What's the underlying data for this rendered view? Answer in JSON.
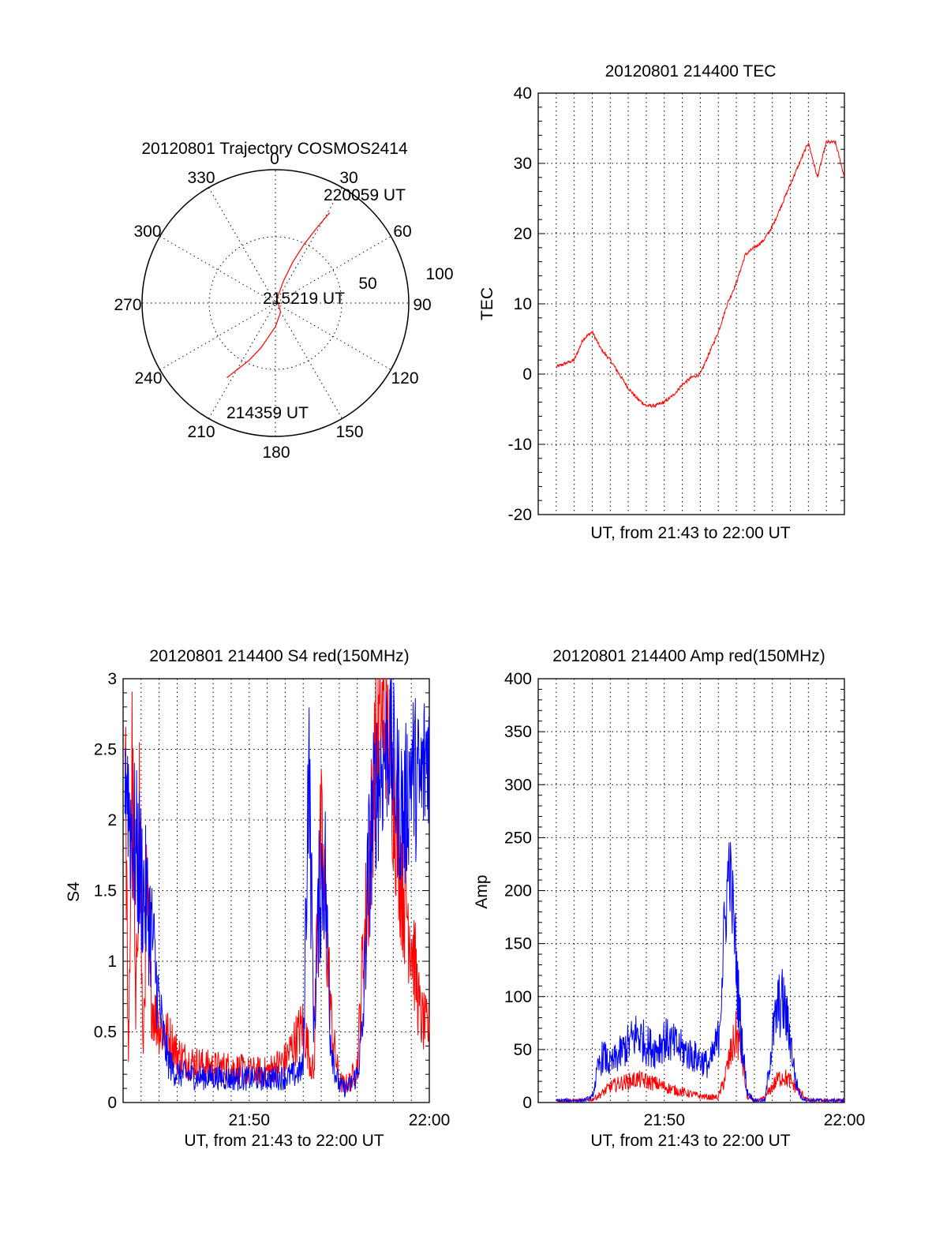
{
  "chart_data": [
    {
      "type": "polar",
      "title": "20120801 Trajectory COSMOS2414",
      "azimuth_labels": [
        "0",
        "30",
        "60",
        "90",
        "120",
        "150",
        "180",
        "210",
        "240",
        "270",
        "300",
        "330"
      ],
      "radial_labels": [
        "50",
        "100"
      ],
      "trajectory": {
        "color": "#ff0000",
        "points": [
          {
            "az": 213,
            "el": 30
          },
          {
            "az": 210,
            "el": 38
          },
          {
            "az": 205,
            "el": 47
          },
          {
            "az": 198,
            "el": 58
          },
          {
            "az": 180,
            "el": 74
          },
          {
            "az": 150,
            "el": 83
          },
          {
            "az": 20,
            "el": 87
          },
          {
            "az": 20,
            "el": 74
          },
          {
            "az": 23,
            "el": 60
          },
          {
            "az": 26,
            "el": 46
          },
          {
            "az": 29,
            "el": 31
          },
          {
            "az": 31,
            "el": 19
          }
        ]
      },
      "annotations": [
        "220059 UT",
        "215219 UT",
        "214359 UT"
      ]
    },
    {
      "type": "line",
      "title": "20120801 214400 TEC",
      "xlabel": "UT, from 21:43 to 22:00 UT",
      "ylabel": "TEC",
      "xlim": [
        0,
        17
      ],
      "ylim": [
        -20,
        40
      ],
      "y_ticks": [
        "40",
        "30",
        "20",
        "10",
        "0",
        "-10",
        "-20"
      ],
      "x_ticks": [],
      "grid": true,
      "series": [
        {
          "color": "#ff0000",
          "x": [
            1.0,
            1.5,
            2.0,
            2.5,
            3.0,
            3.5,
            4.0,
            4.5,
            5.0,
            5.5,
            6.0,
            6.5,
            7.0,
            7.5,
            8.0,
            8.5,
            9.0,
            9.5,
            10.0,
            10.5,
            11.0,
            11.5,
            12.0,
            12.5,
            13.0,
            13.5,
            14.0,
            14.5,
            15.0,
            15.5,
            16.0,
            16.5,
            16.8,
            17.0
          ],
          "y": [
            1,
            1.5,
            2,
            5,
            6,
            3.5,
            2,
            0,
            -2,
            -3.5,
            -4.5,
            -4.5,
            -4,
            -3,
            -1.5,
            -0.5,
            0,
            3,
            6,
            10,
            13,
            17,
            18,
            19,
            21,
            24,
            27,
            30,
            33,
            28,
            33,
            33,
            30,
            28
          ]
        }
      ]
    },
    {
      "type": "line",
      "title": "20120801 214400 S4 red(150MHz)",
      "xlabel": "UT, from 21:43 to 22:00 UT",
      "ylabel": "S4",
      "xlim": [
        0,
        17
      ],
      "ylim": [
        0,
        3
      ],
      "y_ticks": [
        "3",
        "2.5",
        "2",
        "1.5",
        "1",
        "0.5",
        "0"
      ],
      "x_ticks": [
        "21:50",
        "22:00"
      ],
      "grid": true,
      "series": [
        {
          "color": "#ff0000",
          "x": [
            0.1,
            0.3,
            0.5,
            0.7,
            0.9,
            1.1,
            1.3,
            1.5,
            1.8,
            2.2,
            2.6,
            3.0,
            3.5,
            4.0,
            5.0,
            6.0,
            7.0,
            8.0,
            9.0,
            9.6,
            10.0,
            10.4,
            10.6,
            10.8,
            11.0,
            11.3,
            11.6,
            12.0,
            12.3,
            12.6,
            13.0,
            13.3,
            13.6,
            14.0,
            14.5,
            15.0,
            15.5,
            16.0,
            16.5,
            17.0
          ],
          "y": [
            2.8,
            0.2,
            2.5,
            0.5,
            2.2,
            0.3,
            1.5,
            0.8,
            0.6,
            0.5,
            0.45,
            0.35,
            0.3,
            0.28,
            0.25,
            0.25,
            0.22,
            0.22,
            0.3,
            0.45,
            0.55,
            0.3,
            0.2,
            1.5,
            1.8,
            1.2,
            0.5,
            0.15,
            0.12,
            0.15,
            0.25,
            1.0,
            1.5,
            2.5,
            2.8,
            2.2,
            1.6,
            1.2,
            0.6,
            0.5
          ]
        },
        {
          "color": "#0000ff",
          "x": [
            0.1,
            0.4,
            0.7,
            1.0,
            1.3,
            1.6,
            1.9,
            2.2,
            2.5,
            2.8,
            3.2,
            3.6,
            4.0,
            5.0,
            6.0,
            7.0,
            8.0,
            9.0,
            9.6,
            10.0,
            10.3,
            10.6,
            10.9,
            11.2,
            11.5,
            11.8,
            12.0,
            12.3,
            12.6,
            13.0,
            13.3,
            13.6,
            14.0,
            14.4,
            14.8,
            15.2,
            15.6,
            16.0,
            16.5,
            17.0
          ],
          "y": [
            2.5,
            2.0,
            1.8,
            1.6,
            1.4,
            1.2,
            0.8,
            0.5,
            0.3,
            0.22,
            0.2,
            0.2,
            0.18,
            0.18,
            0.17,
            0.17,
            0.17,
            0.18,
            0.2,
            0.25,
            2.5,
            0.5,
            1.5,
            1.7,
            0.5,
            0.2,
            0.12,
            0.1,
            0.12,
            0.2,
            0.5,
            1.6,
            2.2,
            2.4,
            2.6,
            2.2,
            2.0,
            2.4,
            2.2,
            2.6
          ]
        }
      ]
    },
    {
      "type": "line",
      "title": "20120801 214400 Amp red(150MHz)",
      "xlabel": "UT, from 21:43 to 22:00 UT",
      "ylabel": "Amp",
      "xlim": [
        0,
        17
      ],
      "ylim": [
        0,
        400
      ],
      "y_ticks": [
        "400",
        "350",
        "300",
        "250",
        "200",
        "150",
        "100",
        "50",
        "0"
      ],
      "x_ticks": [
        "21:50",
        "22:00"
      ],
      "grid": true,
      "series": [
        {
          "color": "#ff0000",
          "x": [
            1.0,
            2.0,
            2.5,
            3.0,
            3.5,
            4.0,
            4.5,
            5.0,
            5.5,
            6.0,
            6.5,
            7.0,
            7.5,
            8.0,
            8.5,
            9.0,
            9.5,
            10.0,
            10.3,
            10.6,
            11.0,
            11.3,
            11.6,
            12.0,
            12.3,
            12.6,
            13.0,
            13.3,
            13.6,
            14.0,
            14.5,
            15.0,
            16.0,
            17.0
          ],
          "y": [
            2,
            2,
            2,
            3,
            8,
            15,
            18,
            20,
            22,
            20,
            18,
            15,
            12,
            10,
            8,
            6,
            5,
            5,
            20,
            40,
            65,
            45,
            5,
            2,
            2,
            5,
            15,
            22,
            25,
            20,
            10,
            2,
            2,
            2
          ]
        },
        {
          "color": "#0000ff",
          "x": [
            1.0,
            2.0,
            2.5,
            3.0,
            3.3,
            3.6,
            4.0,
            4.5,
            5.0,
            5.5,
            6.0,
            6.5,
            7.0,
            7.5,
            8.0,
            8.5,
            9.0,
            9.5,
            10.0,
            10.3,
            10.6,
            10.9,
            11.1,
            11.3,
            11.6,
            12.0,
            12.3,
            12.6,
            13.0,
            13.3,
            13.6,
            14.0,
            14.3,
            14.6,
            15.0,
            16.0,
            17.0
          ],
          "y": [
            2,
            2,
            2,
            5,
            30,
            45,
            35,
            45,
            55,
            65,
            55,
            50,
            60,
            55,
            50,
            45,
            40,
            35,
            60,
            150,
            230,
            160,
            100,
            60,
            10,
            2,
            2,
            2,
            60,
            90,
            95,
            60,
            20,
            5,
            2,
            2,
            2
          ]
        }
      ]
    }
  ]
}
